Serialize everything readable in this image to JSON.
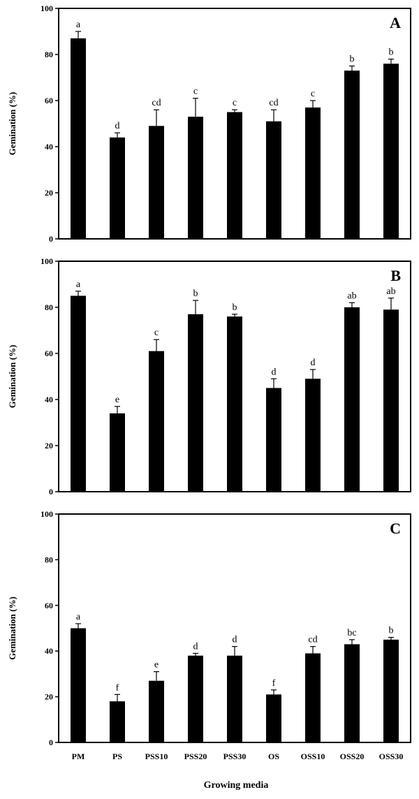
{
  "chart_data": [
    {
      "type": "bar",
      "panel": "A",
      "ylabel": "Gemination (%)",
      "ylim": [
        0,
        100
      ],
      "yticks": [
        0,
        20,
        40,
        60,
        80,
        100
      ],
      "categories": [
        "PM",
        "PS",
        "PSS10",
        "PSS20",
        "PSS30",
        "OS",
        "OSS10",
        "OSS20",
        "OSS30"
      ],
      "values": [
        87,
        44,
        49,
        53,
        55,
        51,
        57,
        73,
        76
      ],
      "errors": [
        3,
        2,
        7,
        8,
        1,
        5,
        3,
        2,
        2
      ],
      "significance": [
        "a",
        "d",
        "cd",
        "c",
        "c",
        "cd",
        "c",
        "b",
        "b"
      ],
      "bar_color": "#000000"
    },
    {
      "type": "bar",
      "panel": "B",
      "ylabel": "Gemination (%)",
      "ylim": [
        0,
        100
      ],
      "yticks": [
        0,
        20,
        40,
        60,
        80,
        100
      ],
      "categories": [
        "PM",
        "PS",
        "PSS10",
        "PSS20",
        "PSS30",
        "OS",
        "OSS10",
        "OSS20",
        "OSS30"
      ],
      "values": [
        85,
        34,
        61,
        77,
        76,
        45,
        49,
        80,
        79
      ],
      "errors": [
        2,
        3,
        5,
        6,
        1,
        4,
        4,
        2,
        5
      ],
      "significance": [
        "a",
        "e",
        "c",
        "b",
        "b",
        "d",
        "d",
        "ab",
        "ab"
      ],
      "bar_color": "#000000"
    },
    {
      "type": "bar",
      "panel": "C",
      "ylabel": "Gemination (%)",
      "ylim": [
        0,
        100
      ],
      "yticks": [
        0,
        20,
        40,
        60,
        80,
        100
      ],
      "categories": [
        "PM",
        "PS",
        "PSS10",
        "PSS20",
        "PSS30",
        "OS",
        "OSS10",
        "OSS20",
        "OSS30"
      ],
      "values": [
        50,
        18,
        27,
        38,
        38,
        21,
        39,
        43,
        45
      ],
      "errors": [
        2,
        3,
        4,
        1,
        4,
        2,
        3,
        2,
        1
      ],
      "significance": [
        "a",
        "f",
        "e",
        "d",
        "d",
        "f",
        "cd",
        "bc",
        "b"
      ],
      "bar_color": "#000000"
    }
  ],
  "xlabel": "Growing media"
}
